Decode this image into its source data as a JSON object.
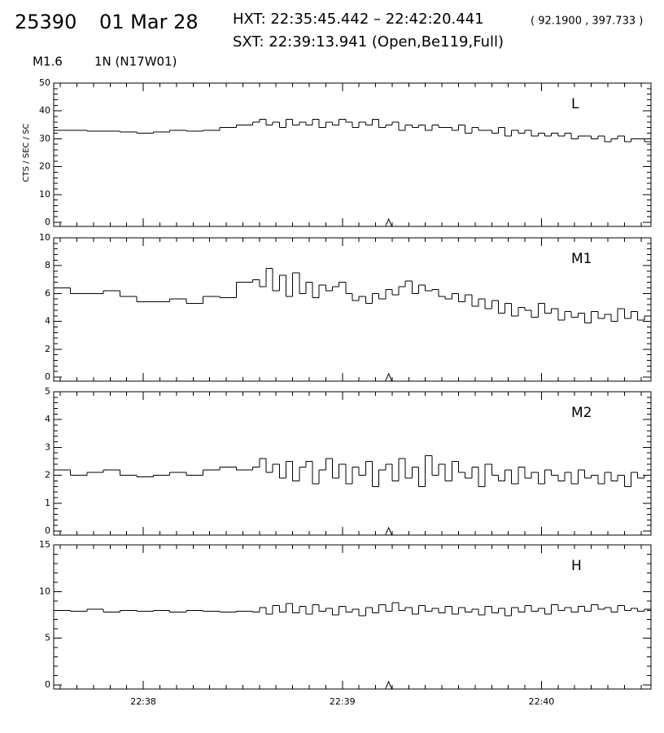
{
  "header": {
    "orbit": "25390",
    "date": "01 Mar 28",
    "hxt": "HXT: 22:35:45.442 – 22:42:20.441",
    "hxt_position": "( 92.1900 , 397.733 )",
    "sxt": "SXT: 22:39:13.941 (Open,Be119,Full)",
    "flare_class": "M1.6",
    "region": "1N (N17W01)"
  },
  "chart_data": [
    {
      "type": "step",
      "title": "L",
      "ylabel": "CTS / SEC / SC",
      "color": "#000000",
      "xlim": [
        81453,
        81633
      ],
      "xticks": [
        81480,
        81540,
        81600
      ],
      "marker_x": 81553.941,
      "ylim": [
        0,
        50
      ],
      "yticks": [
        0,
        10,
        20,
        30,
        40,
        50
      ],
      "x": [
        81453,
        81458,
        81463,
        81468,
        81473,
        81478,
        81483,
        81488,
        81493,
        81498,
        81503,
        81508,
        81513,
        81515,
        81517,
        81519,
        81521,
        81523,
        81525,
        81527,
        81529,
        81531,
        81533,
        81535,
        81537,
        81539,
        81541,
        81543,
        81545,
        81547,
        81549,
        81551,
        81553,
        81555,
        81557,
        81559,
        81561,
        81563,
        81565,
        81567,
        81569,
        81571,
        81573,
        81575,
        81577,
        81579,
        81581,
        81583,
        81585,
        81587,
        81589,
        81591,
        81593,
        81595,
        81597,
        81599,
        81601,
        81603,
        81605,
        81607,
        81609,
        81611,
        81613,
        81615,
        81617,
        81619,
        81621,
        81623,
        81625,
        81627,
        81629,
        81631
      ],
      "values": [
        33,
        33,
        32.7,
        32.7,
        32.5,
        32,
        32.5,
        33,
        32.8,
        33,
        34,
        35,
        36,
        37,
        35,
        36,
        34,
        37,
        35,
        36,
        35,
        37,
        34,
        36,
        35,
        37,
        36,
        34,
        36,
        35,
        37,
        34,
        35,
        36,
        33,
        35,
        34,
        35,
        33,
        35,
        34,
        34,
        33,
        35,
        32,
        34,
        33,
        33,
        32,
        34,
        31,
        33,
        32,
        33,
        31,
        32,
        31,
        32,
        31,
        32,
        30,
        31,
        31,
        30,
        31,
        29,
        30,
        31,
        29,
        30,
        30,
        29
      ]
    },
    {
      "type": "step",
      "title": "M1",
      "color": "#000000",
      "xlim": [
        81453,
        81633
      ],
      "xticks": [
        81480,
        81540,
        81600
      ],
      "marker_x": 81553.941,
      "ylim": [
        0,
        10
      ],
      "yticks": [
        0,
        2,
        4,
        6,
        8,
        10
      ],
      "x": [
        81453,
        81458,
        81463,
        81468,
        81473,
        81478,
        81483,
        81488,
        81493,
        81498,
        81503,
        81508,
        81513,
        81515,
        81517,
        81519,
        81521,
        81523,
        81525,
        81527,
        81529,
        81531,
        81533,
        81535,
        81537,
        81539,
        81541,
        81543,
        81545,
        81547,
        81549,
        81551,
        81553,
        81555,
        81557,
        81559,
        81561,
        81563,
        81565,
        81567,
        81569,
        81571,
        81573,
        81575,
        81577,
        81579,
        81581,
        81583,
        81585,
        81587,
        81589,
        81591,
        81593,
        81595,
        81597,
        81599,
        81601,
        81603,
        81605,
        81607,
        81609,
        81611,
        81613,
        81615,
        81617,
        81619,
        81621,
        81623,
        81625,
        81627,
        81629,
        81631
      ],
      "values": [
        6.4,
        6,
        6,
        6.2,
        5.8,
        5.4,
        5.4,
        5.6,
        5.3,
        5.8,
        5.7,
        6.8,
        7,
        6.5,
        7.8,
        6.2,
        7.3,
        5.8,
        7.5,
        6,
        6.8,
        5.7,
        6.6,
        6.2,
        6.5,
        6.8,
        6,
        5.5,
        5.8,
        5.3,
        6,
        5.6,
        6.3,
        5.9,
        6.5,
        6.9,
        6,
        6.6,
        6.2,
        6.3,
        5.8,
        5.6,
        6,
        5.4,
        5.9,
        5.1,
        5.6,
        4.9,
        5.5,
        4.6,
        5.3,
        4.4,
        5,
        4.8,
        4.3,
        5.3,
        4.6,
        4.9,
        4.1,
        4.7,
        4.3,
        4.6,
        3.9,
        4.7,
        4.2,
        4.5,
        4,
        4.9,
        4.2,
        4.7,
        4.1,
        4.4
      ]
    },
    {
      "type": "step",
      "title": "M2",
      "color": "#000000",
      "xlim": [
        81453,
        81633
      ],
      "xticks": [
        81480,
        81540,
        81600
      ],
      "marker_x": 81553.941,
      "ylim": [
        0,
        5
      ],
      "yticks": [
        0,
        1,
        2,
        3,
        4,
        5
      ],
      "x": [
        81453,
        81458,
        81463,
        81468,
        81473,
        81478,
        81483,
        81488,
        81493,
        81498,
        81503,
        81508,
        81513,
        81515,
        81517,
        81519,
        81521,
        81523,
        81525,
        81527,
        81529,
        81531,
        81533,
        81535,
        81537,
        81539,
        81541,
        81543,
        81545,
        81547,
        81549,
        81551,
        81553,
        81555,
        81557,
        81559,
        81561,
        81563,
        81565,
        81567,
        81569,
        81571,
        81573,
        81575,
        81577,
        81579,
        81581,
        81583,
        81585,
        81587,
        81589,
        81591,
        81593,
        81595,
        81597,
        81599,
        81601,
        81603,
        81605,
        81607,
        81609,
        81611,
        81613,
        81615,
        81617,
        81619,
        81621,
        81623,
        81625,
        81627,
        81629,
        81631
      ],
      "values": [
        2.2,
        2,
        2.1,
        2.2,
        2,
        1.95,
        2,
        2.1,
        2,
        2.2,
        2.3,
        2.2,
        2.3,
        2.6,
        2.1,
        2.4,
        1.9,
        2.5,
        1.8,
        2.3,
        2.5,
        1.7,
        2.2,
        2.6,
        1.9,
        2.4,
        1.7,
        2.3,
        2,
        2.5,
        1.6,
        2.2,
        2.4,
        1.8,
        2.6,
        1.9,
        2.3,
        1.6,
        2.7,
        2,
        2.4,
        1.8,
        2.5,
        2.1,
        1.9,
        2.3,
        1.6,
        2.4,
        2,
        1.8,
        2.2,
        1.7,
        2.3,
        1.9,
        2.1,
        1.7,
        2.2,
        2,
        1.8,
        2.1,
        1.7,
        2.2,
        1.9,
        2,
        1.7,
        2.1,
        1.8,
        2,
        1.6,
        2.1,
        1.9,
        2
      ]
    },
    {
      "type": "step",
      "title": "H",
      "color": "#000000",
      "xlim": [
        81453,
        81633
      ],
      "xticks": [
        {
          "value": 81480,
          "label": "22:38"
        },
        {
          "value": 81540,
          "label": "22:39"
        },
        {
          "value": 81600,
          "label": "22:40"
        }
      ],
      "marker_x": 81553.941,
      "ylim": [
        0,
        15
      ],
      "yticks": [
        0,
        5,
        10,
        15
      ],
      "x": [
        81453,
        81458,
        81463,
        81468,
        81473,
        81478,
        81483,
        81488,
        81493,
        81498,
        81503,
        81508,
        81513,
        81515,
        81517,
        81519,
        81521,
        81523,
        81525,
        81527,
        81529,
        81531,
        81533,
        81535,
        81537,
        81539,
        81541,
        81543,
        81545,
        81547,
        81549,
        81551,
        81553,
        81555,
        81557,
        81559,
        81561,
        81563,
        81565,
        81567,
        81569,
        81571,
        81573,
        81575,
        81577,
        81579,
        81581,
        81583,
        81585,
        81587,
        81589,
        81591,
        81593,
        81595,
        81597,
        81599,
        81601,
        81603,
        81605,
        81607,
        81609,
        81611,
        81613,
        81615,
        81617,
        81619,
        81621,
        81623,
        81625,
        81627,
        81629,
        81631
      ],
      "values": [
        8,
        7.9,
        8.1,
        7.8,
        8,
        7.9,
        8,
        7.8,
        8,
        7.9,
        7.8,
        7.9,
        7.8,
        8.3,
        7.6,
        8.5,
        7.8,
        8.7,
        7.7,
        8.4,
        7.6,
        8.6,
        7.9,
        8.2,
        7.5,
        8.4,
        7.8,
        8.1,
        7.4,
        8.3,
        7.7,
        8.6,
        7.9,
        8.8,
        8,
        8.3,
        7.6,
        8.5,
        7.9,
        8.2,
        7.7,
        8.4,
        7.6,
        8.3,
        7.8,
        8.1,
        7.5,
        8.4,
        7.7,
        8.2,
        7.4,
        8.3,
        7.8,
        8.5,
        7.9,
        8.2,
        7.6,
        8.6,
        8,
        8.3,
        7.8,
        8.4,
        7.9,
        8.6,
        8.1,
        8.3,
        7.8,
        8.5,
        8,
        8.2,
        7.9,
        8.1
      ]
    }
  ]
}
